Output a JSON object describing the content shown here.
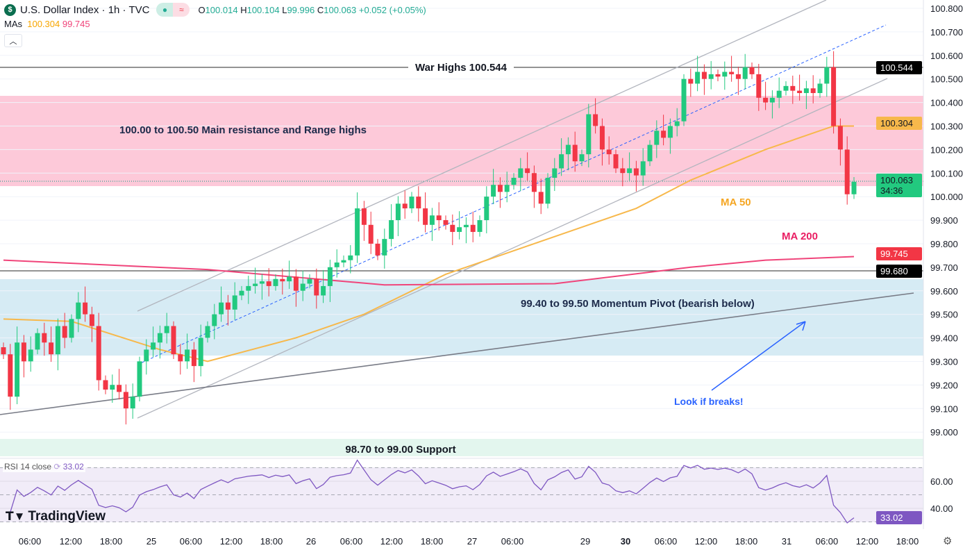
{
  "header": {
    "symbol_icon": "dollar-icon",
    "title": "U.S. Dollar Index · 1h · TVC",
    "market_status_icon": "dot-icon",
    "data_delay_icon": "approx-icon",
    "open_label": "O",
    "open": "100.014",
    "high_label": "H",
    "high": "100.104",
    "low_label": "L",
    "low": "99.996",
    "close_label": "C",
    "close": "100.063",
    "change": "+0.052 (+0.05%)"
  },
  "mas": {
    "label": "MAs",
    "ma50": "100.304",
    "ma200": "99.745"
  },
  "collapse_icon": "chevron-up-icon",
  "colors": {
    "up": "#089981",
    "up_body": "#22c97f",
    "down": "#f23645",
    "ma50": "#f7b84b",
    "ma200": "#f0447a",
    "rsi": "#7e57c2",
    "resistance_zone": "#fdc9d9",
    "pivot_zone": "#d6ebf4",
    "support_zone": "#e3f6ee"
  },
  "annotations": {
    "war_highs": "War Highs 100.544",
    "resistance": "100.00 to 100.50 Main resistance and Range highs",
    "ma50": "MA 50",
    "ma200": "MA 200",
    "pivot": "99.40 to 99.50 Momentum Pivot (bearish below)",
    "breaks": "Look if breaks!",
    "support": "98.70 to 99.00 Support"
  },
  "price_axis": {
    "ticks": [
      "100.800",
      "100.700",
      "100.600",
      "100.500",
      "100.400",
      "100.300",
      "100.200",
      "100.100",
      "100.000",
      "99.900",
      "99.800",
      "99.700",
      "99.600",
      "99.500",
      "99.400",
      "99.300",
      "99.200",
      "99.100",
      "99.000"
    ],
    "badges": {
      "war_high": "100.544",
      "ma50": "100.304",
      "last": "100.063",
      "countdown": "34:36",
      "ma200": "99.745",
      "level": "99.680"
    }
  },
  "rsi": {
    "label": "RSI 14 close",
    "value": "33.02",
    "ticks": [
      "60.00",
      "40.00"
    ],
    "badge": "33.02"
  },
  "time_axis": [
    "06:00",
    "12:00",
    "18:00",
    "25",
    "06:00",
    "12:00",
    "18:00",
    "26",
    "06:00",
    "12:00",
    "18:00",
    "27",
    "06:00",
    "29",
    "30",
    "06:00",
    "12:00",
    "18:00",
    "31",
    "06:00",
    "12:00",
    "18:00"
  ],
  "watermark": "TradingView",
  "chart_data": {
    "type": "candlestick",
    "interval": "1h",
    "ylim": [
      99.0,
      100.8
    ],
    "closes": [
      99.33,
      99.15,
      99.38,
      99.3,
      99.35,
      99.42,
      99.38,
      99.33,
      99.45,
      99.4,
      99.48,
      99.55,
      99.5,
      99.45,
      99.22,
      99.18,
      99.2,
      99.17,
      99.1,
      99.15,
      99.3,
      99.35,
      99.38,
      99.42,
      99.45,
      99.33,
      99.3,
      99.35,
      99.28,
      99.4,
      99.45,
      99.5,
      99.55,
      99.52,
      99.58,
      99.6,
      99.62,
      99.63,
      99.64,
      99.62,
      99.65,
      99.64,
      99.66,
      99.6,
      99.63,
      99.65,
      99.58,
      99.62,
      99.7,
      99.72,
      99.73,
      99.75,
      99.95,
      99.88,
      99.8,
      99.75,
      99.82,
      99.9,
      99.97,
      99.95,
      100.0,
      99.95,
      99.88,
      99.92,
      99.9,
      99.88,
      99.85,
      99.87,
      99.88,
      99.85,
      99.9,
      100.0,
      100.05,
      100.02,
      100.05,
      100.08,
      100.12,
      100.1,
      100.02,
      99.97,
      100.08,
      100.12,
      100.18,
      100.22,
      100.15,
      100.18,
      100.35,
      100.3,
      100.2,
      100.18,
      100.12,
      100.1,
      100.12,
      100.09,
      100.15,
      100.22,
      100.28,
      100.25,
      100.3,
      100.32,
      100.5,
      100.48,
      100.53,
      100.5,
      100.52,
      100.51,
      100.53,
      100.52,
      100.5,
      100.55,
      100.52,
      100.42,
      100.4,
      100.42,
      100.45,
      100.47,
      100.45,
      100.44,
      100.46,
      100.44,
      100.48,
      100.55,
      100.3,
      100.2,
      100.01,
      100.063
    ],
    "ma50": [
      [
        0,
        99.48
      ],
      [
        10,
        99.47
      ],
      [
        23,
        99.35
      ],
      [
        30,
        99.3
      ],
      [
        43,
        99.4
      ],
      [
        53,
        99.5
      ],
      [
        65,
        99.67
      ],
      [
        73,
        99.75
      ],
      [
        83,
        99.85
      ],
      [
        93,
        99.95
      ],
      [
        101,
        100.07
      ],
      [
        112,
        100.2
      ],
      [
        122,
        100.3
      ],
      [
        125,
        100.3
      ]
    ],
    "ma200": [
      [
        0,
        99.73
      ],
      [
        30,
        99.69
      ],
      [
        56,
        99.625
      ],
      [
        81,
        99.63
      ],
      [
        101,
        99.7
      ],
      [
        112,
        99.73
      ],
      [
        125,
        99.745
      ]
    ],
    "horizontal_levels": [
      100.544,
      99.68
    ]
  }
}
